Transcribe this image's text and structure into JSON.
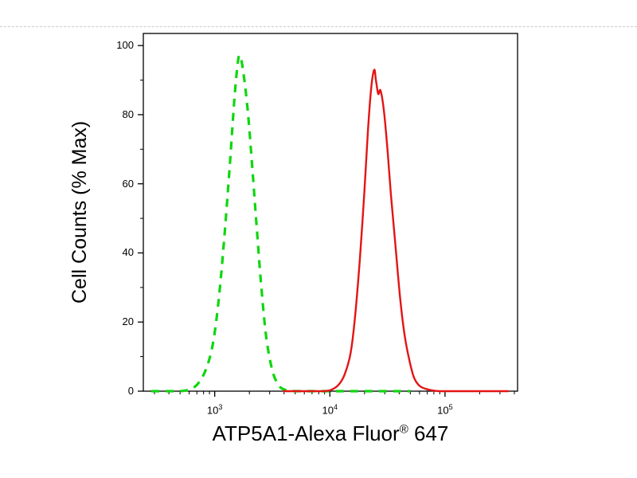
{
  "page": {
    "background": "#ffffff",
    "separator_color": "#cccccc"
  },
  "chart_data": {
    "type": "line",
    "subtype": "flow-cytometry-histogram-overlay",
    "title": "",
    "xlabel": {
      "main": "ATP5A1-Alexa Fluor",
      "registered": "®",
      "suffix": " 647"
    },
    "ylabel": "Cell Counts (% Max)",
    "x_scale": "log10",
    "x_range_log10": [
      2.38,
      5.63
    ],
    "ylim": [
      0,
      100
    ],
    "y_ticks": [
      0,
      20,
      40,
      60,
      80,
      100
    ],
    "y_minor_step": 10,
    "x_major_ticks": [
      {
        "log10": 3,
        "mantissa": "10",
        "exponent": "3"
      },
      {
        "log10": 4,
        "mantissa": "10",
        "exponent": "4"
      },
      {
        "log10": 5,
        "mantissa": "10",
        "exponent": "5"
      }
    ],
    "grid": false,
    "legend": "none",
    "axis_color": "#000000",
    "series": [
      {
        "data_name": "green-dashed-curve",
        "style": "dashed",
        "color": "#0fd60f",
        "width": 3.2,
        "dash": [
          10,
          8
        ],
        "peak_log10x": 3.21,
        "peak_pct": 97,
        "points": [
          [
            2.45,
            0
          ],
          [
            2.6,
            0
          ],
          [
            2.7,
            0
          ],
          [
            2.78,
            0.5
          ],
          [
            2.85,
            2
          ],
          [
            2.92,
            6
          ],
          [
            2.98,
            13
          ],
          [
            3.03,
            25
          ],
          [
            3.08,
            43
          ],
          [
            3.13,
            65
          ],
          [
            3.17,
            84
          ],
          [
            3.2,
            95
          ],
          [
            3.22,
            97
          ],
          [
            3.25,
            92
          ],
          [
            3.29,
            80
          ],
          [
            3.33,
            63
          ],
          [
            3.37,
            45
          ],
          [
            3.41,
            28
          ],
          [
            3.45,
            15
          ],
          [
            3.5,
            6
          ],
          [
            3.55,
            2
          ],
          [
            3.6,
            0.5
          ],
          [
            3.7,
            0
          ],
          [
            3.9,
            0
          ],
          [
            4.2,
            0
          ],
          [
            4.5,
            0
          ],
          [
            4.7,
            0
          ]
        ]
      },
      {
        "data_name": "red-solid-curve",
        "style": "solid",
        "color": "#e41414",
        "width": 2.4,
        "dash": null,
        "peak_log10x": 4.385,
        "peak_pct": 93,
        "points": [
          [
            3.6,
            0
          ],
          [
            3.8,
            0
          ],
          [
            3.95,
            0
          ],
          [
            4.02,
            0.5
          ],
          [
            4.08,
            2
          ],
          [
            4.13,
            5
          ],
          [
            4.18,
            11
          ],
          [
            4.22,
            22
          ],
          [
            4.26,
            38
          ],
          [
            4.3,
            58
          ],
          [
            4.33,
            75
          ],
          [
            4.36,
            88
          ],
          [
            4.385,
            93
          ],
          [
            4.4,
            90
          ],
          [
            4.42,
            86
          ],
          [
            4.44,
            87
          ],
          [
            4.47,
            81
          ],
          [
            4.5,
            70
          ],
          [
            4.53,
            57
          ],
          [
            4.57,
            42
          ],
          [
            4.61,
            27
          ],
          [
            4.65,
            16
          ],
          [
            4.69,
            9
          ],
          [
            4.73,
            4
          ],
          [
            4.78,
            1.5
          ],
          [
            4.85,
            0.5
          ],
          [
            4.95,
            0
          ],
          [
            5.1,
            0
          ],
          [
            5.3,
            0
          ],
          [
            5.55,
            0
          ]
        ]
      }
    ]
  }
}
